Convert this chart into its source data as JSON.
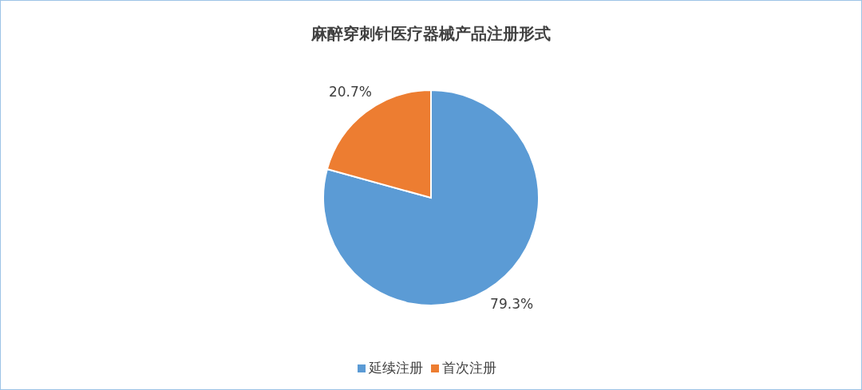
{
  "chart_data": {
    "type": "pie",
    "title": "麻醉穿刺针医疗器械产品注册形式",
    "categories": [
      "延续注册",
      "首次注册"
    ],
    "values": [
      79.3,
      20.7
    ],
    "colors": [
      "#5b9bd5",
      "#ed7d31"
    ],
    "value_labels": [
      "79.3%",
      "20.7%"
    ],
    "legend": "bottom"
  }
}
